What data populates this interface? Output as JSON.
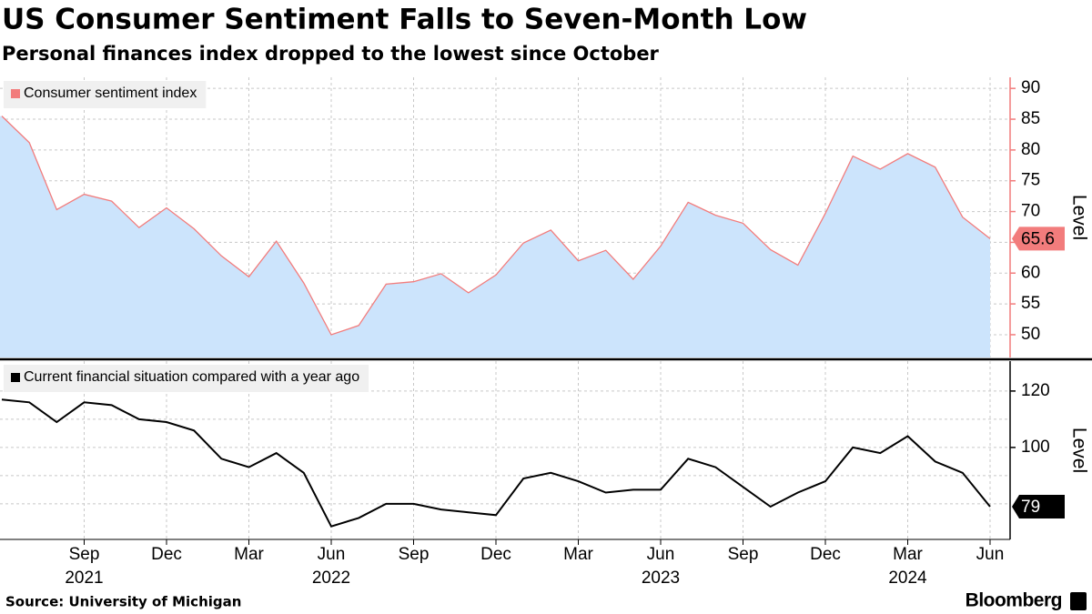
{
  "title": "US Consumer Sentiment Falls to Seven-Month Low",
  "subtitle": "Personal finances index dropped to the lowest since October",
  "source": "Source: University of Michigan",
  "brand": "Bloomberg",
  "x_axis": {
    "categories": [
      null,
      null,
      null,
      "Sep",
      null,
      null,
      "Dec",
      null,
      null,
      "Mar",
      null,
      null,
      "Jun",
      null,
      null,
      "Sep",
      null,
      null,
      "Dec",
      null,
      null,
      "Mar",
      null,
      null,
      "Jun",
      null,
      null,
      "Sep",
      null,
      null,
      "Dec",
      null,
      null,
      "Mar",
      null,
      null,
      "Jun"
    ],
    "years": [
      null,
      null,
      null,
      "2021",
      null,
      null,
      null,
      null,
      null,
      null,
      null,
      null,
      "2022",
      null,
      null,
      null,
      null,
      null,
      null,
      null,
      null,
      null,
      null,
      null,
      "2023",
      null,
      null,
      null,
      null,
      null,
      null,
      null,
      null,
      "2024",
      null,
      null,
      null
    ]
  },
  "chart_data": [
    {
      "type": "area",
      "y_label": "Level",
      "grid": true,
      "line_color": "#f27c7c",
      "fill_color": "#cce4fc",
      "axis_color": "#f27c7c",
      "ylim": [
        46.3,
        91.8
      ],
      "yticks": [
        50,
        55,
        60,
        65,
        70,
        75,
        80,
        85,
        90
      ],
      "series": [
        {
          "name": "Consumer sentiment index",
          "color": "#f27c7c",
          "values": [
            85.5,
            81.2,
            70.3,
            72.8,
            71.7,
            67.4,
            70.6,
            67.2,
            62.8,
            59.4,
            65.2,
            58.4,
            50.0,
            51.5,
            58.2,
            58.6,
            59.9,
            56.8,
            59.7,
            64.9,
            67.0,
            62.0,
            63.7,
            59.0,
            64.4,
            71.5,
            69.4,
            68.1,
            63.8,
            61.3,
            69.7,
            79.0,
            76.9,
            79.4,
            77.2,
            69.1,
            65.6
          ]
        }
      ]
    },
    {
      "type": "line",
      "y_label": "Level",
      "grid": true,
      "line_color": "#000000",
      "axis_color": "#000000",
      "ylim": [
        67.4,
        130.6
      ],
      "yticks": [
        100,
        120
      ],
      "minor_grid": [
        80,
        90,
        110
      ],
      "series": [
        {
          "name": "Current financial situation compared with a year ago",
          "color": "#000000",
          "values": [
            117,
            116,
            109,
            116,
            115,
            110,
            109,
            106,
            96,
            93,
            98,
            91,
            72,
            75,
            80,
            80,
            78,
            77,
            76,
            89,
            91,
            88,
            84,
            85,
            85,
            96,
            93,
            86,
            79,
            84,
            88,
            100,
            98,
            104,
            95,
            91,
            79
          ]
        }
      ]
    }
  ]
}
